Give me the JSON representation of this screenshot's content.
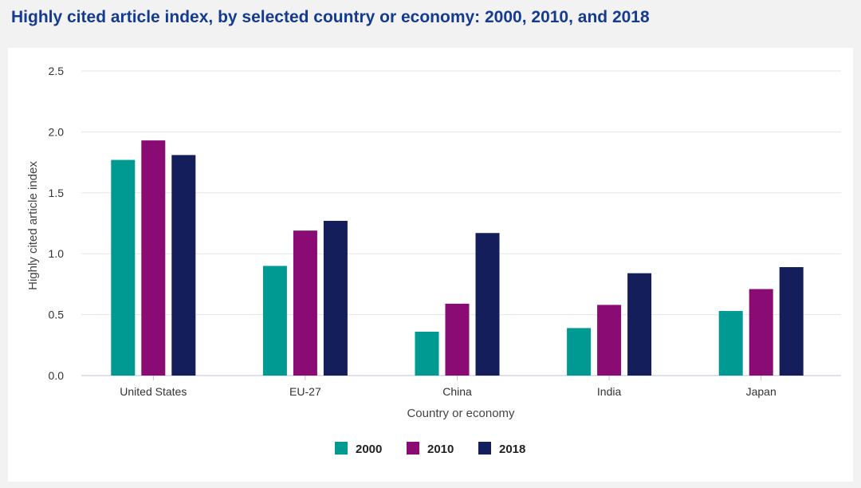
{
  "page": {
    "title": "Highly cited article index, by selected country or economy: 2000, 2010, and 2018"
  },
  "chart_data": {
    "type": "bar",
    "title": "Highly cited article index, by selected country or economy: 2000, 2010, and 2018",
    "xlabel": "Country or economy",
    "ylabel": "Highly cited article index",
    "ylim": [
      0,
      2.5
    ],
    "yticks": [
      "0.0",
      "0.5",
      "1.0",
      "1.5",
      "2.0",
      "2.5"
    ],
    "grid": true,
    "legend_position": "bottom-center",
    "categories": [
      "United States",
      "EU-27",
      "China",
      "India",
      "Japan"
    ],
    "series": [
      {
        "name": "2000",
        "color": "#009a93",
        "values": [
          1.77,
          0.9,
          0.36,
          0.39,
          0.53
        ]
      },
      {
        "name": "2010",
        "color": "#8a0b73",
        "values": [
          1.93,
          1.19,
          0.59,
          0.58,
          0.71
        ]
      },
      {
        "name": "2018",
        "color": "#141e5a",
        "values": [
          1.81,
          1.27,
          1.17,
          0.84,
          0.89
        ]
      }
    ]
  }
}
